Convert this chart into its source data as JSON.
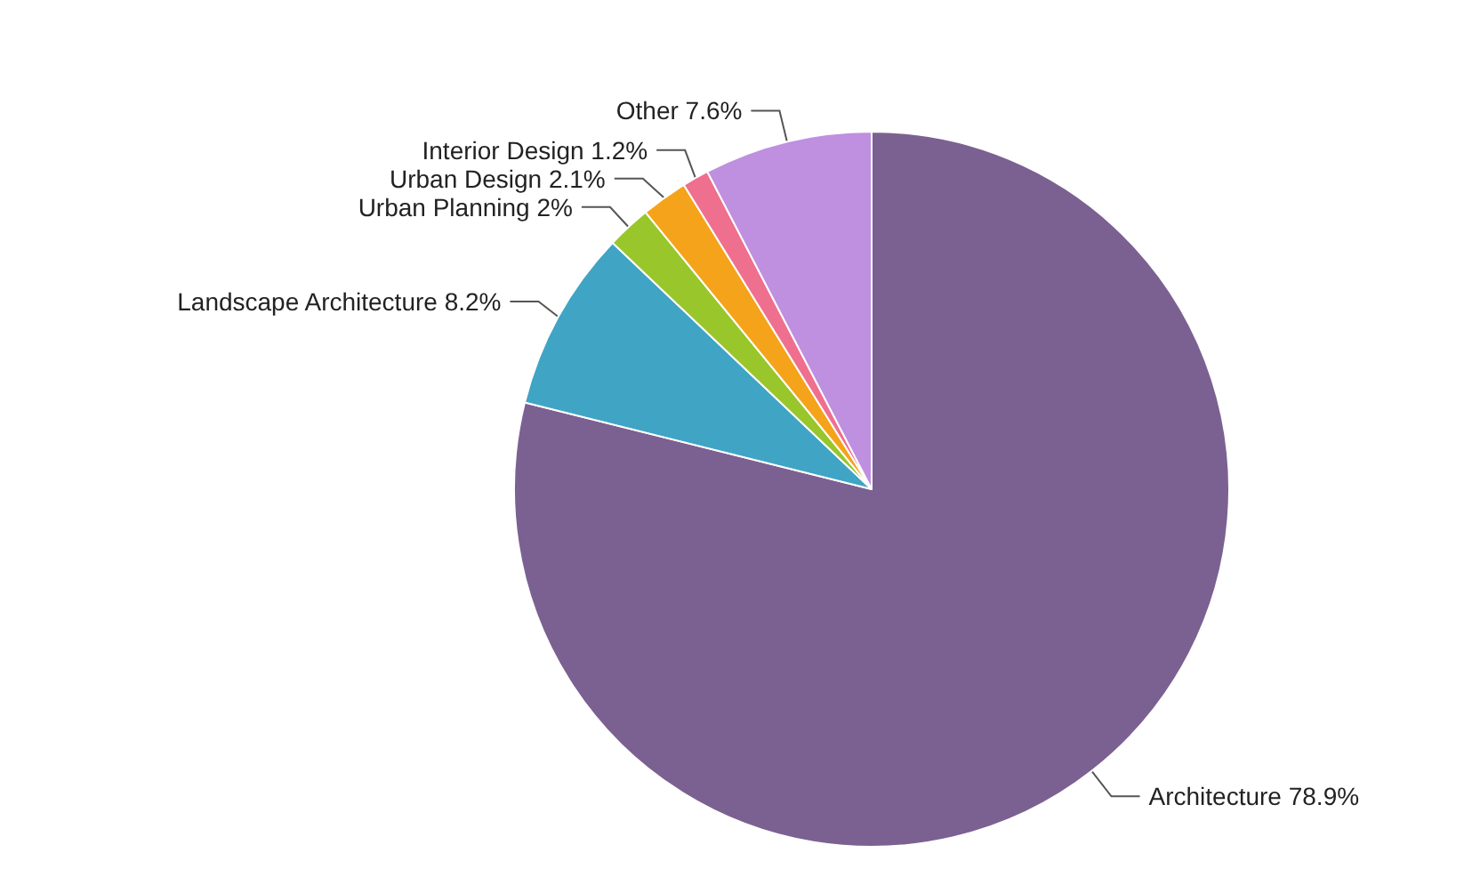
{
  "chart_data": {
    "type": "pie",
    "categories": [
      "Architecture",
      "Landscape Architecture",
      "Urban Planning",
      "Urban Design",
      "Interior Design",
      "Other"
    ],
    "values": [
      78.9,
      8.2,
      2,
      2.1,
      1.2,
      7.6
    ],
    "value_labels": [
      "78.9%",
      "8.2%",
      "2%",
      "2.1%",
      "1.2%",
      "7.6%"
    ],
    "colors": [
      "#7b6191",
      "#40a4c4",
      "#99c62a",
      "#f5a31a",
      "#ef6f8f",
      "#bf8fe0"
    ],
    "legend": false
  }
}
